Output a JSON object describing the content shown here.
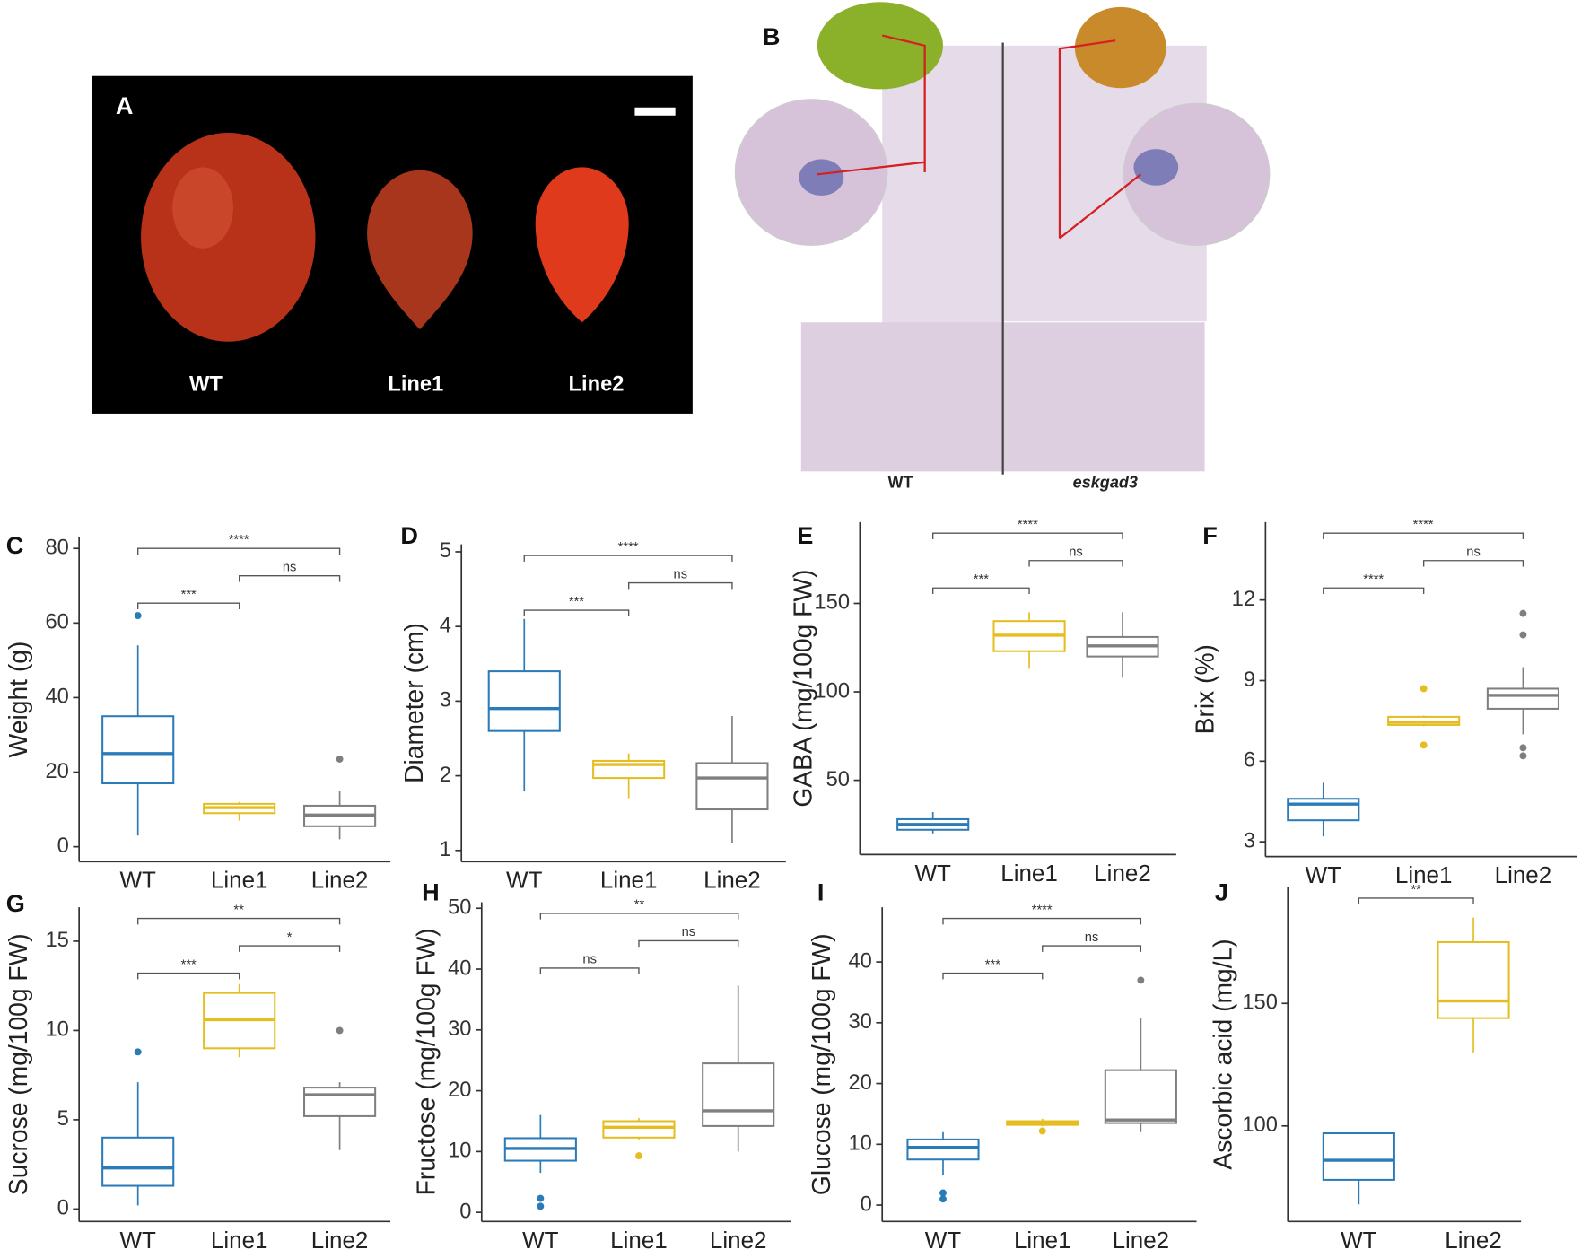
{
  "photo_panels": {
    "a": {
      "label": "A",
      "captions": [
        "WT",
        "Line1",
        "Line2"
      ]
    },
    "b": {
      "label": "B",
      "captions": [
        "WT",
        "eskgad3"
      ]
    }
  },
  "chart_data": [
    {
      "type": "box",
      "label": "C",
      "ylabel": "Weight (g)",
      "categories": [
        "WT",
        "Line1",
        "Line2"
      ],
      "colors": [
        "#2b7bb9",
        "#e5bd1f",
        "#7f7f7f"
      ],
      "boxes": [
        {
          "whisker_low": 3,
          "q1": 17,
          "median": 25,
          "q3": 35,
          "whisker_high": 54,
          "outliers": [
            62
          ]
        },
        {
          "whisker_low": 7,
          "q1": 9,
          "median": 10.5,
          "q3": 11.5,
          "whisker_high": 12,
          "outliers": []
        },
        {
          "whisker_low": 2,
          "q1": 5.5,
          "median": 8.5,
          "q3": 11,
          "whisker_high": 15,
          "outliers": [
            23.5
          ]
        }
      ],
      "ylim": [
        -4,
        83
      ],
      "yticks": [
        0,
        20,
        40,
        60,
        80
      ],
      "comparisons": [
        {
          "from": "WT",
          "to": "Line2",
          "label": "****"
        },
        {
          "from": "Line1",
          "to": "Line2",
          "label": "ns"
        },
        {
          "from": "WT",
          "to": "Line1",
          "label": "***"
        }
      ]
    },
    {
      "type": "box",
      "label": "D",
      "ylabel": "Diameter (cm)",
      "categories": [
        "WT",
        "Line1",
        "Line2"
      ],
      "colors": [
        "#2b7bb9",
        "#e5bd1f",
        "#7f7f7f"
      ],
      "boxes": [
        {
          "whisker_low": 1.8,
          "q1": 2.6,
          "median": 2.9,
          "q3": 3.4,
          "whisker_high": 4.1,
          "outliers": []
        },
        {
          "whisker_low": 1.7,
          "q1": 1.97,
          "median": 2.15,
          "q3": 2.2,
          "whisker_high": 2.3,
          "outliers": []
        },
        {
          "whisker_low": 1.1,
          "q1": 1.55,
          "median": 1.97,
          "q3": 2.17,
          "whisker_high": 2.8,
          "outliers": []
        }
      ],
      "ylim": [
        0.85,
        5.1
      ],
      "yticks": [
        1,
        2,
        3,
        4,
        5
      ],
      "comparisons": [
        {
          "from": "WT",
          "to": "Line2",
          "label": "****"
        },
        {
          "from": "Line1",
          "to": "Line2",
          "label": "ns"
        },
        {
          "from": "WT",
          "to": "Line1",
          "label": "***"
        }
      ]
    },
    {
      "type": "box",
      "label": "E",
      "ylabel": "GABA (mg/100g FW)",
      "categories": [
        "WT",
        "Line1",
        "Line2"
      ],
      "colors": [
        "#2b7bb9",
        "#e5bd1f",
        "#7f7f7f"
      ],
      "boxes": [
        {
          "whisker_low": 20,
          "q1": 22,
          "median": 25,
          "q3": 28,
          "whisker_high": 32,
          "outliers": []
        },
        {
          "whisker_low": 113,
          "q1": 123,
          "median": 132,
          "q3": 140,
          "whisker_high": 145,
          "outliers": []
        },
        {
          "whisker_low": 108,
          "q1": 120,
          "median": 126,
          "q3": 131,
          "whisker_high": 145,
          "outliers": []
        }
      ],
      "ylim": [
        8,
        196
      ],
      "yticks": [
        50,
        100,
        150
      ],
      "comparisons": [
        {
          "from": "WT",
          "to": "Line2",
          "label": "****"
        },
        {
          "from": "Line1",
          "to": "Line2",
          "label": "ns"
        },
        {
          "from": "WT",
          "to": "Line1",
          "label": "***"
        }
      ]
    },
    {
      "type": "box",
      "label": "F",
      "ylabel": "Brix (%)",
      "categories": [
        "WT",
        "Line1",
        "Line2"
      ],
      "colors": [
        "#2b7bb9",
        "#e5bd1f",
        "#7f7f7f"
      ],
      "boxes": [
        {
          "whisker_low": 3.2,
          "q1": 3.8,
          "median": 4.4,
          "q3": 4.6,
          "whisker_high": 5.2,
          "outliers": []
        },
        {
          "whisker_low": 7.3,
          "q1": 7.35,
          "median": 7.45,
          "q3": 7.65,
          "whisker_high": 7.7,
          "outliers": [
            8.7,
            6.6
          ]
        },
        {
          "whisker_low": 7.0,
          "q1": 7.95,
          "median": 8.45,
          "q3": 8.7,
          "whisker_high": 9.5,
          "outliers": [
            11.5,
            10.7,
            6.5,
            6.2
          ]
        }
      ],
      "ylim": [
        2.45,
        14.9
      ],
      "yticks": [
        3,
        6,
        9,
        12
      ],
      "comparisons": [
        {
          "from": "WT",
          "to": "Line2",
          "label": "****"
        },
        {
          "from": "Line1",
          "to": "Line2",
          "label": "ns"
        },
        {
          "from": "WT",
          "to": "Line1",
          "label": "****"
        }
      ]
    },
    {
      "type": "box",
      "label": "G",
      "ylabel": "Sucrose (mg/100g FW)",
      "categories": [
        "WT",
        "Line1",
        "Line2"
      ],
      "colors": [
        "#2b7bb9",
        "#e5bd1f",
        "#7f7f7f"
      ],
      "boxes": [
        {
          "whisker_low": 0.2,
          "q1": 1.3,
          "median": 2.3,
          "q3": 4.0,
          "whisker_high": 7.1,
          "outliers": [
            8.8
          ]
        },
        {
          "whisker_low": 8.5,
          "q1": 9.0,
          "median": 10.6,
          "q3": 12.1,
          "whisker_high": 12.6,
          "outliers": []
        },
        {
          "whisker_low": 3.3,
          "q1": 5.2,
          "median": 6.4,
          "q3": 6.8,
          "whisker_high": 7.1,
          "outliers": [
            10
          ]
        }
      ],
      "ylim": [
        -0.7,
        16.9
      ],
      "yticks": [
        0,
        5,
        10,
        15
      ],
      "comparisons": [
        {
          "from": "WT",
          "to": "Line2",
          "label": "**"
        },
        {
          "from": "Line1",
          "to": "Line2",
          "label": "*"
        },
        {
          "from": "WT",
          "to": "Line1",
          "label": "***"
        }
      ]
    },
    {
      "type": "box",
      "label": "H",
      "ylabel": "Fructose (mg/100g FW)",
      "categories": [
        "WT",
        "Line1",
        "Line2"
      ],
      "colors": [
        "#2b7bb9",
        "#e5bd1f",
        "#7f7f7f"
      ],
      "boxes": [
        {
          "whisker_low": 6.5,
          "q1": 8.5,
          "median": 10.5,
          "q3": 12.2,
          "whisker_high": 16,
          "outliers": [
            2.3,
            1.0
          ]
        },
        {
          "whisker_low": 12,
          "q1": 12.3,
          "median": 14,
          "q3": 15,
          "whisker_high": 15.5,
          "outliers": [
            9.3
          ]
        },
        {
          "whisker_low": 10,
          "q1": 14.2,
          "median": 16.7,
          "q3": 24.5,
          "whisker_high": 37.3,
          "outliers": []
        }
      ],
      "ylim": [
        -1.5,
        51
      ],
      "yticks": [
        0,
        10,
        20,
        30,
        40,
        50
      ],
      "comparisons": [
        {
          "from": "WT",
          "to": "Line2",
          "label": "**"
        },
        {
          "from": "Line1",
          "to": "Line2",
          "label": "ns"
        },
        {
          "from": "WT",
          "to": "Line1",
          "label": "ns"
        }
      ]
    },
    {
      "type": "box",
      "label": "I",
      "ylabel": "Glucose (mg/100g FW)",
      "categories": [
        "WT",
        "Line1",
        "Line2"
      ],
      "colors": [
        "#2b7bb9",
        "#e5bd1f",
        "#7f7f7f"
      ],
      "boxes": [
        {
          "whisker_low": 5,
          "q1": 7.5,
          "median": 9.5,
          "q3": 10.8,
          "whisker_high": 12,
          "outliers": [
            2,
            1
          ]
        },
        {
          "whisker_low": 13,
          "q1": 13.2,
          "median": 13.5,
          "q3": 13.8,
          "whisker_high": 14.2,
          "outliers": [
            12.2
          ]
        },
        {
          "whisker_low": 12,
          "q1": 13.5,
          "median": 14,
          "q3": 22.2,
          "whisker_high": 30.7,
          "outliers": [
            37
          ]
        }
      ],
      "ylim": [
        -2.7,
        49
      ],
      "yticks": [
        0,
        10,
        20,
        30,
        40
      ],
      "comparisons": [
        {
          "from": "WT",
          "to": "Line2",
          "label": "****"
        },
        {
          "from": "Line1",
          "to": "Line2",
          "label": "ns"
        },
        {
          "from": "WT",
          "to": "Line1",
          "label": "***"
        }
      ]
    },
    {
      "type": "box",
      "label": "J",
      "ylabel": "Ascorbic acid (mg/L)",
      "categories": [
        "WT",
        "Line2"
      ],
      "colors": [
        "#2b7bb9",
        "#e5bd1f"
      ],
      "boxes": [
        {
          "whisker_low": 68,
          "q1": 78,
          "median": 86,
          "q3": 97,
          "whisker_high": 97,
          "outliers": []
        },
        {
          "whisker_low": 130,
          "q1": 144,
          "median": 151,
          "q3": 175,
          "whisker_high": 185,
          "outliers": []
        }
      ],
      "ylim": [
        61,
        197.5
      ],
      "yticks": [
        100,
        150
      ],
      "comparisons": [
        {
          "from": "WT",
          "to": "Line2",
          "label": "**"
        }
      ]
    }
  ]
}
